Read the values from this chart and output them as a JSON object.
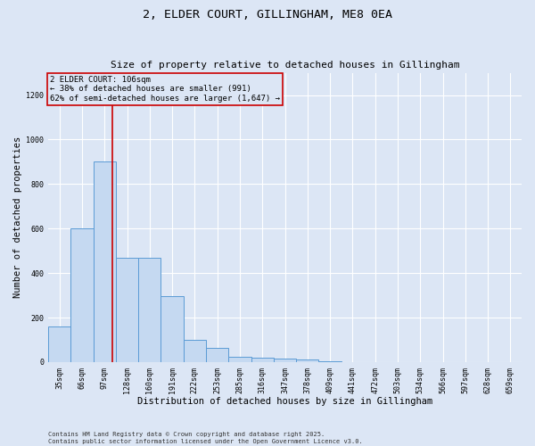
{
  "title": "2, ELDER COURT, GILLINGHAM, ME8 0EA",
  "subtitle": "Size of property relative to detached houses in Gillingham",
  "xlabel": "Distribution of detached houses by size in Gillingham",
  "ylabel": "Number of detached properties",
  "bar_color": "#c5d9f1",
  "bar_edge_color": "#5b9bd5",
  "background_color": "#dce6f5",
  "categories": [
    "35sqm",
    "66sqm",
    "97sqm",
    "128sqm",
    "160sqm",
    "191sqm",
    "222sqm",
    "253sqm",
    "285sqm",
    "316sqm",
    "347sqm",
    "378sqm",
    "409sqm",
    "441sqm",
    "472sqm",
    "503sqm",
    "534sqm",
    "566sqm",
    "597sqm",
    "628sqm",
    "659sqm"
  ],
  "values": [
    160,
    600,
    900,
    470,
    470,
    295,
    100,
    65,
    25,
    20,
    15,
    10,
    5,
    0,
    0,
    0,
    0,
    0,
    0,
    0,
    0
  ],
  "ylim": [
    0,
    1300
  ],
  "yticks": [
    0,
    200,
    400,
    600,
    800,
    1000,
    1200
  ],
  "vline_x": 2.35,
  "vline_color": "#cc0000",
  "annotation_text": "2 ELDER COURT: 106sqm\n← 38% of detached houses are smaller (991)\n62% of semi-detached houses are larger (1,647) →",
  "footnote": "Contains HM Land Registry data © Crown copyright and database right 2025.\nContains public sector information licensed under the Open Government Licence v3.0.",
  "grid_color": "#ffffff",
  "title_fontsize": 9.5,
  "subtitle_fontsize": 8,
  "tick_fontsize": 6,
  "label_fontsize": 7.5,
  "annotation_fontsize": 6.5,
  "footnote_fontsize": 5
}
